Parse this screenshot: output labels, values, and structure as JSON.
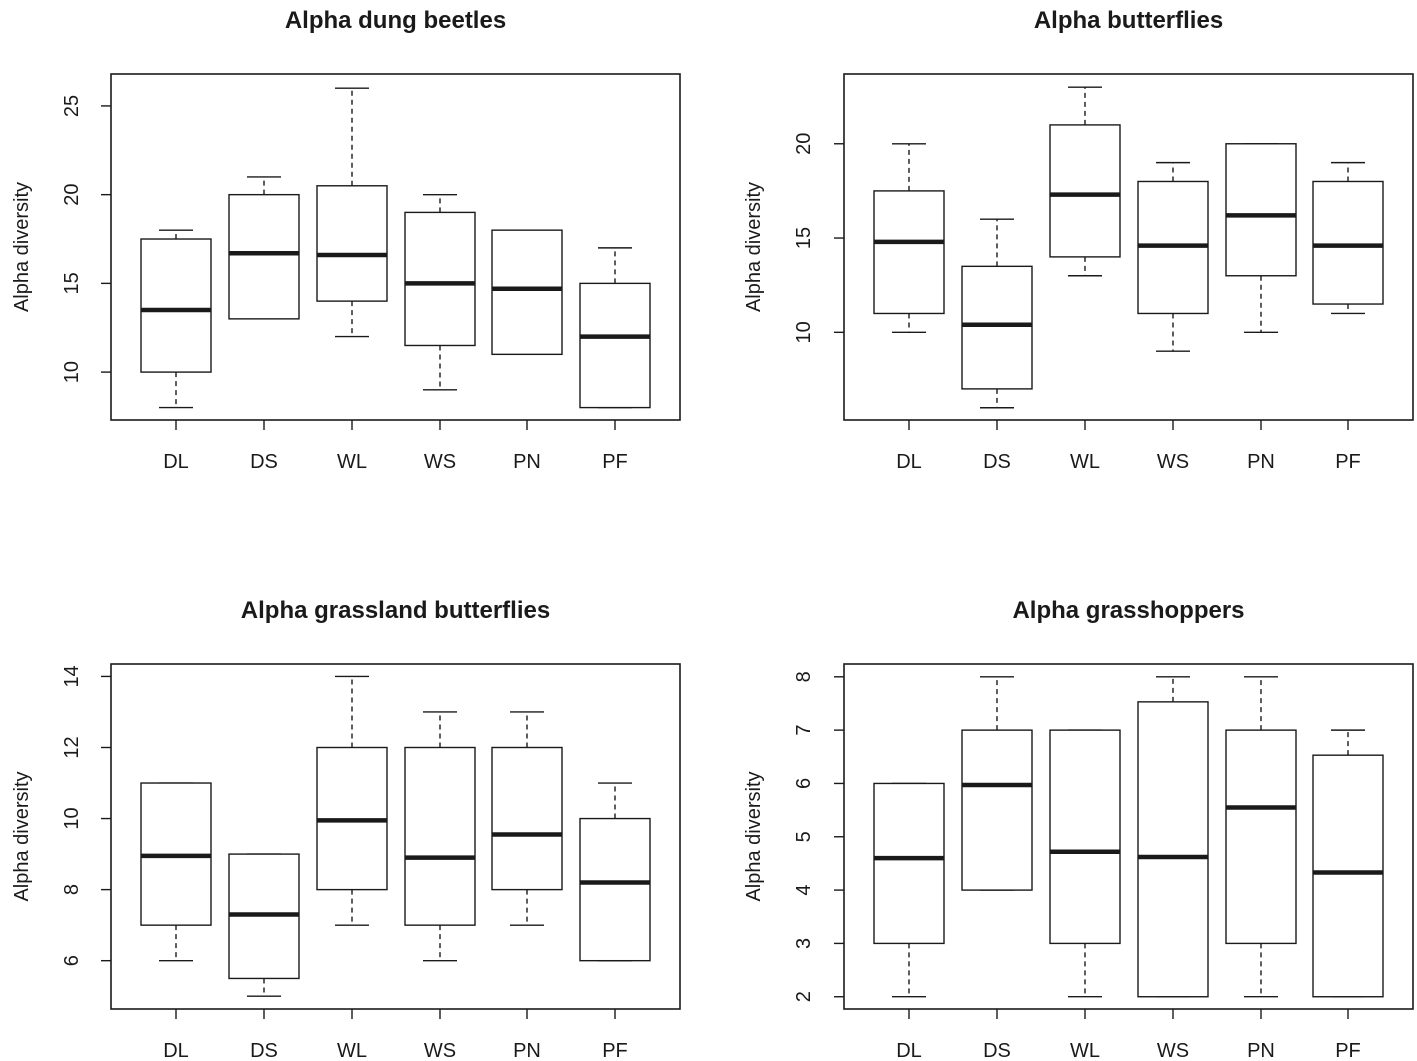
{
  "chart_data": [
    {
      "type": "boxplot",
      "title": "Alpha dung beetles",
      "ylabel": "Alpha diversity",
      "categories": [
        "DL",
        "DS",
        "WL",
        "WS",
        "PN",
        "PF"
      ],
      "yticks": [
        10,
        15,
        20,
        25
      ],
      "ylim": [
        7.3,
        26.8
      ],
      "boxes": [
        {
          "min": 8,
          "q1": 10,
          "median": 13.5,
          "q3": 17.5,
          "max": 18
        },
        {
          "min": 13,
          "q1": 13,
          "median": 16.7,
          "q3": 20,
          "max": 21
        },
        {
          "min": 12,
          "q1": 14,
          "median": 16.6,
          "q3": 20.5,
          "max": 26
        },
        {
          "min": 9,
          "q1": 11.5,
          "median": 15,
          "q3": 19,
          "max": 20
        },
        {
          "min": 11,
          "q1": 11,
          "median": 14.7,
          "q3": 18,
          "max": 18
        },
        {
          "min": 8,
          "q1": 8,
          "median": 12,
          "q3": 15,
          "max": 17
        }
      ]
    },
    {
      "type": "boxplot",
      "title": "Alpha butterflies",
      "ylabel": "Alpha diversity",
      "categories": [
        "DL",
        "DS",
        "WL",
        "WS",
        "PN",
        "PF"
      ],
      "yticks": [
        10,
        15,
        20
      ],
      "ylim": [
        5.35,
        23.7
      ],
      "boxes": [
        {
          "min": 10,
          "q1": 11,
          "median": 14.8,
          "q3": 17.5,
          "max": 20
        },
        {
          "min": 6,
          "q1": 7,
          "median": 10.4,
          "q3": 13.5,
          "max": 16
        },
        {
          "min": 13,
          "q1": 14,
          "median": 17.3,
          "q3": 21,
          "max": 23
        },
        {
          "min": 9,
          "q1": 11,
          "median": 14.6,
          "q3": 18,
          "max": 19
        },
        {
          "min": 10,
          "q1": 13,
          "median": 16.2,
          "q3": 20,
          "max": 20
        },
        {
          "min": 11,
          "q1": 11.5,
          "median": 14.6,
          "q3": 18,
          "max": 19
        }
      ]
    },
    {
      "type": "boxplot",
      "title": "Alpha grassland butterflies",
      "ylabel": "Alpha diversity",
      "categories": [
        "DL",
        "DS",
        "WL",
        "WS",
        "PN",
        "PF"
      ],
      "yticks": [
        6,
        8,
        10,
        12,
        14
      ],
      "ylim": [
        4.64,
        14.35
      ],
      "boxes": [
        {
          "min": 6,
          "q1": 7,
          "median": 8.95,
          "q3": 11,
          "max": 11
        },
        {
          "min": 5,
          "q1": 5.5,
          "median": 7.3,
          "q3": 9,
          "max": 9
        },
        {
          "min": 7,
          "q1": 8,
          "median": 9.95,
          "q3": 12,
          "max": 14
        },
        {
          "min": 6,
          "q1": 7,
          "median": 8.9,
          "q3": 12,
          "max": 13
        },
        {
          "min": 7,
          "q1": 8,
          "median": 9.55,
          "q3": 12,
          "max": 13
        },
        {
          "min": 6,
          "q1": 6,
          "median": 8.2,
          "q3": 10,
          "max": 11
        }
      ]
    },
    {
      "type": "boxplot",
      "title": "Alpha grasshoppers",
      "ylabel": "Alpha diversity",
      "categories": [
        "DL",
        "DS",
        "WL",
        "WS",
        "PN",
        "PF"
      ],
      "yticks": [
        2,
        3,
        4,
        5,
        6,
        7,
        8
      ],
      "ylim": [
        1.77,
        8.24
      ],
      "boxes": [
        {
          "min": 2,
          "q1": 3,
          "median": 4.6,
          "q3": 6,
          "max": 6
        },
        {
          "min": 4,
          "q1": 4,
          "median": 5.97,
          "q3": 7,
          "max": 8
        },
        {
          "min": 2,
          "q1": 3,
          "median": 4.72,
          "q3": 7,
          "max": 7
        },
        {
          "min": 2,
          "q1": 2,
          "median": 4.62,
          "q3": 7.53,
          "max": 8
        },
        {
          "min": 2,
          "q1": 3,
          "median": 5.55,
          "q3": 7,
          "max": 8
        },
        {
          "min": 2,
          "q1": 2,
          "median": 4.33,
          "q3": 6.53,
          "max": 7
        }
      ]
    }
  ]
}
